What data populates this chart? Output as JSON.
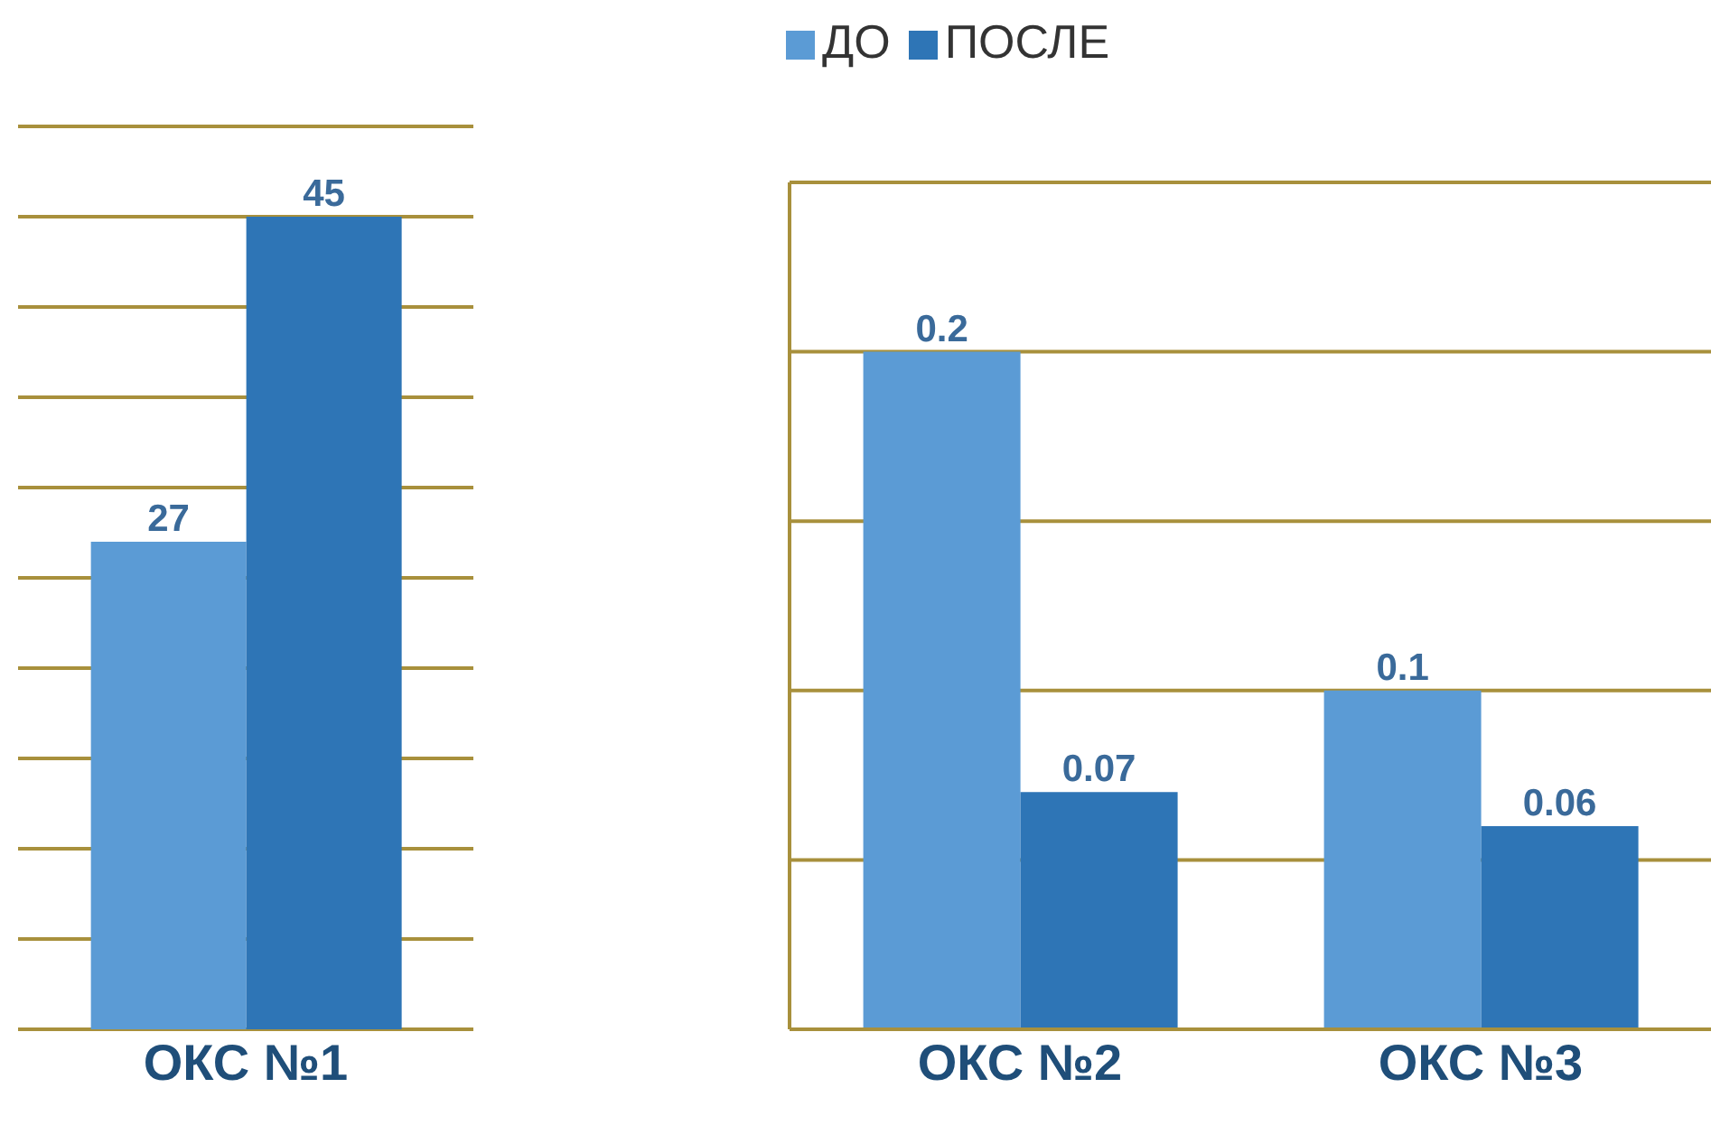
{
  "chart_data": [
    {
      "type": "bar",
      "categories": [
        "ОКС №1"
      ],
      "series": [
        {
          "color": "#5b9bd5",
          "values": [
            27
          ]
        },
        {
          "color": "#2e75b6",
          "values": [
            45
          ]
        }
      ],
      "ylim": [
        0,
        50
      ],
      "yticks": [
        {
          "value": 0,
          "label": null
        },
        {
          "value": 5,
          "label": null
        },
        {
          "value": 10,
          "label": null
        },
        {
          "value": 15,
          "label": null
        },
        {
          "value": 20,
          "label": null
        },
        {
          "value": 25,
          "label": null
        },
        {
          "value": 30,
          "label": null
        },
        {
          "value": 35,
          "label": null
        },
        {
          "value": 40,
          "label": null
        },
        {
          "value": 45,
          "label": null
        },
        {
          "value": 50,
          "label": null
        }
      ],
      "tick_labels": "x",
      "grid": "y",
      "data_labels": true
    },
    {
      "type": "bar",
      "categories": [
        "ОКС №2",
        "ОКС №3"
      ],
      "series": [
        {
          "name": "ДО",
          "color": "#5b9bd5",
          "values": [
            0.2,
            0.1
          ]
        },
        {
          "name": "ПОСЛЕ",
          "color": "#2e75b6",
          "values": [
            0.07,
            0.06
          ]
        }
      ],
      "ylim": [
        0,
        0.25
      ],
      "yticks": [
        {
          "value": 0,
          "label": null
        },
        {
          "value": 0.05,
          "label": null
        },
        {
          "value": 0.1,
          "label": null
        },
        {
          "value": 0.15,
          "label": null
        },
        {
          "value": 0.2,
          "label": null
        },
        {
          "value": 0.25,
          "label": null
        }
      ],
      "tick_labels": "x",
      "grid": "y",
      "data_labels": true,
      "legend": "top"
    }
  ]
}
